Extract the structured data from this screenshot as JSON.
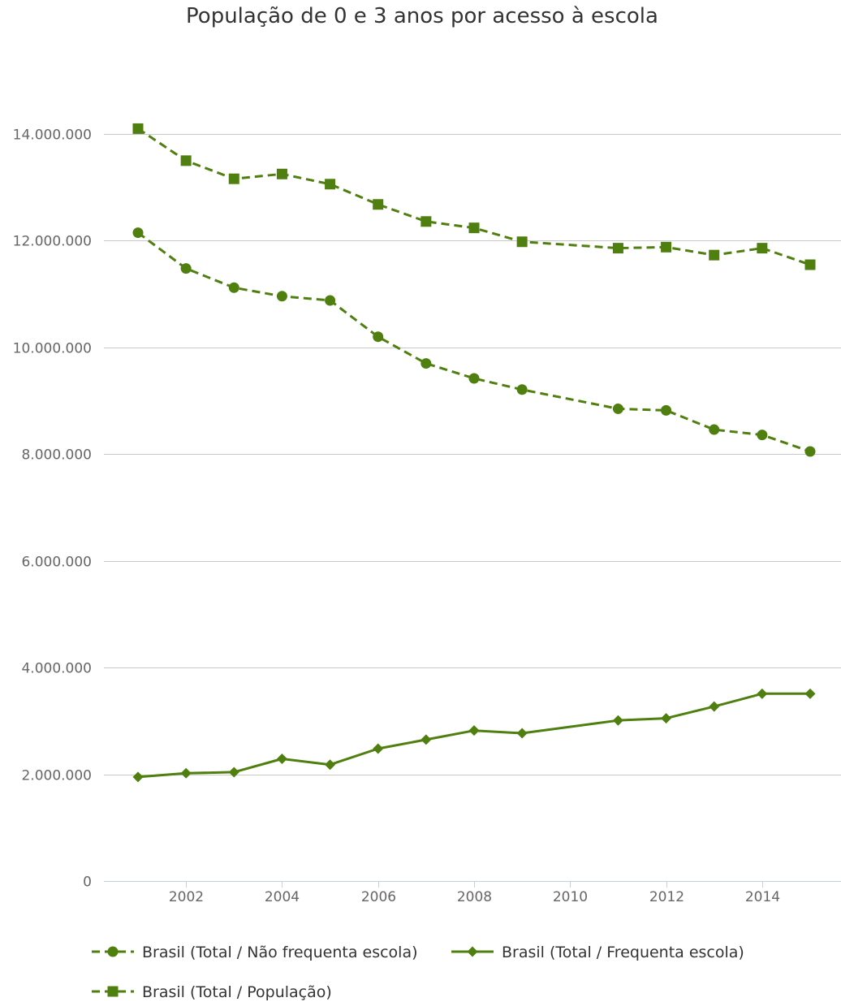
{
  "chart_data": {
    "type": "line",
    "title": "População de 0 e 3 anos por acesso à escola",
    "xlabel": "",
    "ylabel": "",
    "x": [
      2001,
      2002,
      2003,
      2004,
      2005,
      2006,
      2007,
      2008,
      2009,
      2011,
      2012,
      2013,
      2014,
      2015
    ],
    "xlim": [
      2000,
      2015.6
    ],
    "x_ticks": [
      2002,
      2004,
      2006,
      2008,
      2010,
      2012,
      2014
    ],
    "ylim": [
      0,
      14000000
    ],
    "y_ticks": [
      0,
      2000000,
      4000000,
      6000000,
      8000000,
      10000000,
      12000000,
      14000000
    ],
    "y_tick_labels": [
      "0",
      "2.000.000",
      "4.000.000",
      "6.000.000",
      "8.000.000",
      "10.000.000",
      "12.000.000",
      "14.000.000"
    ],
    "grid": true,
    "legend_position": "bottom",
    "series": [
      {
        "name": "Brasil (Total / Não frequenta escola)",
        "marker": "circle",
        "dashed": true,
        "color": "#4f7f0f",
        "values": [
          12150000,
          11480000,
          11120000,
          10960000,
          10880000,
          10200000,
          9700000,
          9420000,
          9210000,
          8850000,
          8820000,
          8460000,
          8360000,
          8050000
        ]
      },
      {
        "name": "Brasil (Total / Frequenta escola)",
        "marker": "diamond",
        "dashed": false,
        "color": "#4f7f0f",
        "values": [
          1950000,
          2020000,
          2040000,
          2290000,
          2180000,
          2480000,
          2650000,
          2820000,
          2770000,
          3010000,
          3050000,
          3270000,
          3510000,
          3510000
        ]
      },
      {
        "name": "Brasil (Total / População)",
        "marker": "square",
        "dashed": true,
        "color": "#4f7f0f",
        "values": [
          14100000,
          13500000,
          13160000,
          13250000,
          13060000,
          12680000,
          12360000,
          12240000,
          11980000,
          11860000,
          11880000,
          11730000,
          11860000,
          11550000
        ]
      }
    ]
  }
}
